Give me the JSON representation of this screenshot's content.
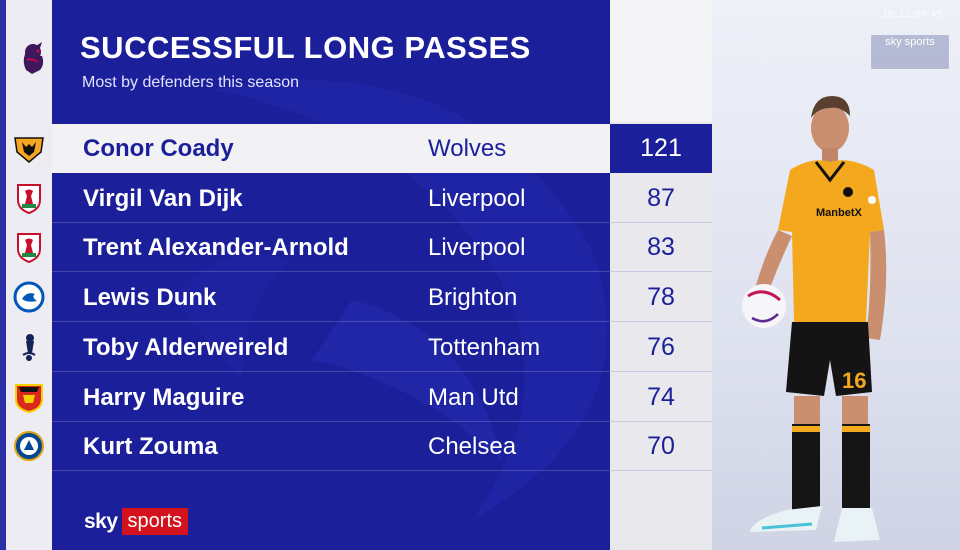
{
  "header": {
    "title": "SUCCESSFUL LONG PASSES",
    "subtitle": "Most by defenders this season"
  },
  "broadcast": {
    "time": "18:22:09:45",
    "channel": "sky sports",
    "sky_label": "sky",
    "sports_label": "sports"
  },
  "colors": {
    "panel_blue": "#1b1f9a",
    "sky_red": "#d3121d",
    "wolves_gold": "#f5a623",
    "liverpool_red": "#c8102e",
    "brighton_blue": "#0057b8",
    "tottenham_navy": "#132257",
    "man_utd_red": "#da291c",
    "chelsea_blue": "#034694"
  },
  "rows": [
    {
      "crest": "wolves-crest-icon",
      "player": "Conor Coady",
      "club": "Wolves",
      "value": 121,
      "highlight": true
    },
    {
      "crest": "liverpool-crest-icon",
      "player": "Virgil Van Dijk",
      "club": "Liverpool",
      "value": 87
    },
    {
      "crest": "liverpool-crest-icon",
      "player": "Trent Alexander-Arnold",
      "club": "Liverpool",
      "value": 83
    },
    {
      "crest": "brighton-crest-icon",
      "player": "Lewis Dunk",
      "club": "Brighton",
      "value": 78
    },
    {
      "crest": "tottenham-crest-icon",
      "player": "Toby Alderweireld",
      "club": "Tottenham",
      "value": 76
    },
    {
      "crest": "man-utd-crest-icon",
      "player": "Harry Maguire",
      "club": "Man Utd",
      "value": 74
    },
    {
      "crest": "chelsea-crest-icon",
      "player": "Kurt Zouma",
      "club": "Chelsea",
      "value": 70
    }
  ],
  "player_image": {
    "shirt_number": "16",
    "sponsor": "万博 ManbetX",
    "icon": "player-photo"
  }
}
